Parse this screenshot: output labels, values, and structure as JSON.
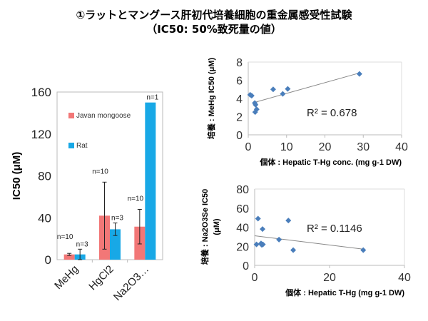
{
  "title": {
    "line1": "①ラットとマングース肝初代培養細胞の重金属感受性試験",
    "line2": "（IC50: 50%致死量の値）"
  },
  "chart_data": [
    {
      "type": "bar",
      "ylabel": "IC50 (μM)",
      "ylim": [
        0,
        160
      ],
      "yticks": [
        0,
        40,
        80,
        120,
        160
      ],
      "categories": [
        "MeHg",
        "HgCl2",
        "Na2O3…"
      ],
      "legend_position": "upper-left inside",
      "series": [
        {
          "name": "Javan mongoose",
          "color": "#F27777",
          "values": [
            5,
            42,
            31.5
          ],
          "errors": [
            1,
            32,
            16.5
          ],
          "n_labels": [
            "n=10",
            "n=10",
            "n=10"
          ]
        },
        {
          "name": "Rat",
          "color": "#18A8E6",
          "values": [
            5,
            29,
            150
          ],
          "errors": [
            5,
            6,
            0
          ],
          "n_labels": [
            "n=3",
            "n=3",
            "n=1"
          ]
        }
      ]
    },
    {
      "type": "scatter",
      "xlabel": "個体 : Hepatic T-Hg conc. (mg g-1 DW)",
      "ylabel": "培養 : MeHg IC50 (μM)",
      "xlim": [
        0,
        40
      ],
      "ylim": [
        0,
        8
      ],
      "xticks": [
        0,
        10,
        20,
        30,
        40
      ],
      "yticks": [
        0,
        2,
        4,
        6,
        8
      ],
      "points": [
        [
          0.5,
          4.4
        ],
        [
          0.9,
          4.3
        ],
        [
          1.7,
          3.5
        ],
        [
          1.9,
          3.3
        ],
        [
          1.8,
          2.5
        ],
        [
          2.2,
          2.8
        ],
        [
          6.5,
          5.0
        ],
        [
          9,
          4.5
        ],
        [
          10.3,
          5.05
        ],
        [
          29,
          6.7
        ]
      ],
      "trendline": [
        [
          1.5,
          3.55
        ],
        [
          29,
          6.8
        ]
      ],
      "annotation": "R² = 0.678",
      "color": "#4A7EBB"
    },
    {
      "type": "scatter",
      "xlabel": "個体 : Hepatic T-Hg (mg g-1 DW)",
      "ylabel": "培養 : Na2O3Se IC50 (μM)",
      "xlim": [
        0,
        40
      ],
      "ylim": [
        0,
        80
      ],
      "xticks": [
        0,
        20,
        40
      ],
      "yticks": [
        0,
        20,
        40,
        60,
        80
      ],
      "points": [
        [
          0.5,
          22
        ],
        [
          0.9,
          49
        ],
        [
          1.7,
          23
        ],
        [
          1.9,
          21.5
        ],
        [
          2.2,
          22
        ],
        [
          2.1,
          38
        ],
        [
          6.5,
          27
        ],
        [
          9,
          47
        ],
        [
          10.3,
          16
        ],
        [
          29,
          16
        ]
      ],
      "trendline": [
        [
          0,
          31
        ],
        [
          29,
          17
        ]
      ],
      "annotation": "R² = 0.1146",
      "color": "#4A7EBB"
    }
  ]
}
